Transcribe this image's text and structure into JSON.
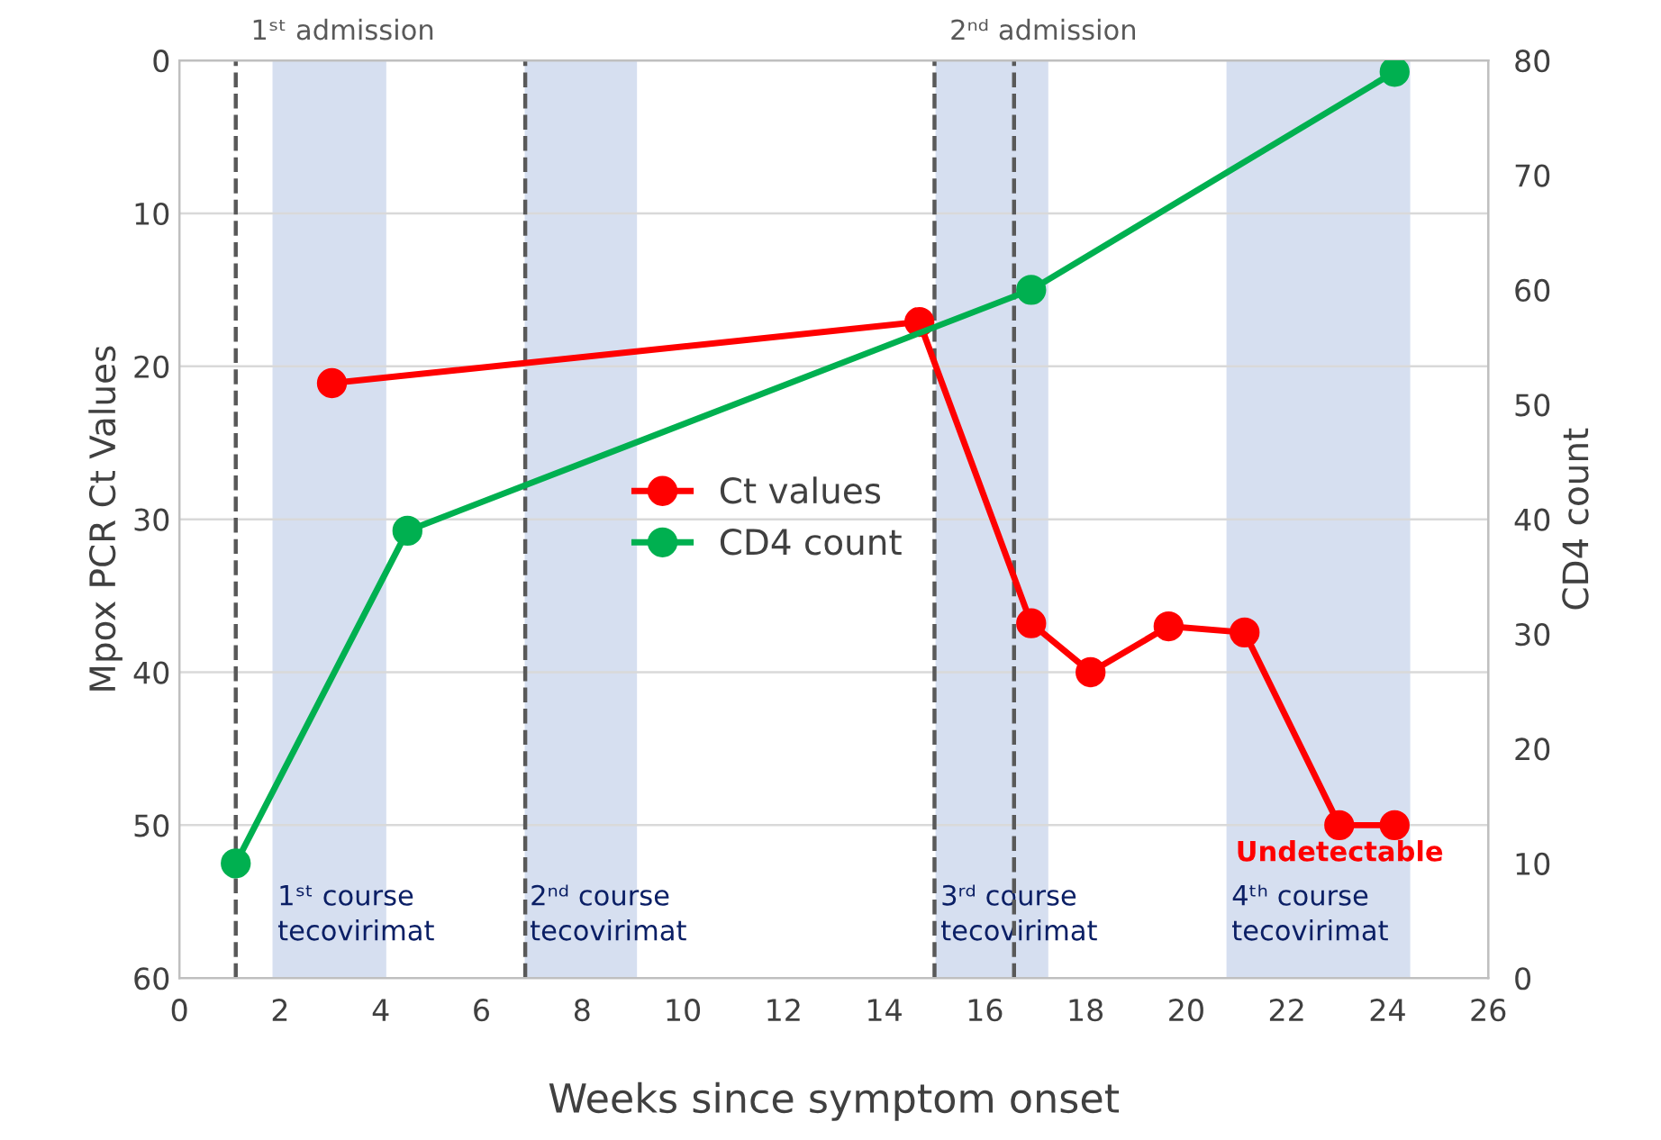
{
  "chart_data": {
    "type": "line",
    "xlabel": "Weeks since symptom onset",
    "ylabel": "Mpox PCR Ct Values",
    "y2label": "CD4 count",
    "series": [
      {
        "name": "Ct values",
        "color": "#ff0000",
        "x": [
          3.03,
          14.7,
          16.92,
          18.1,
          19.65,
          21.16,
          23.04,
          24.14
        ],
        "values": [
          21.1,
          17.1,
          36.8,
          40.0,
          37.0,
          37.4,
          50,
          50
        ]
      },
      {
        "name": "CD4 count",
        "color": "#00b050",
        "axis": "y2",
        "x": [
          1.12,
          4.53,
          16.92,
          24.14
        ],
        "values": [
          10,
          39,
          60,
          79
        ]
      }
    ],
    "xlim": [
      0,
      26
    ],
    "xticks": [
      0,
      2,
      4,
      6,
      8,
      10,
      12,
      14,
      16,
      18,
      20,
      22,
      24,
      26
    ],
    "ylim": [
      60,
      0
    ],
    "yticks": [
      0,
      10,
      20,
      30,
      40,
      50,
      60
    ],
    "y2lim": [
      0,
      80
    ],
    "y2ticks": [
      0,
      10,
      20,
      30,
      40,
      50,
      60,
      70,
      80
    ],
    "ref_lines": [
      {
        "axis": "x",
        "value": 1.12,
        "line_style": "dashed",
        "color": "#595959",
        "label": "1ˢᵗ admission"
      },
      {
        "axis": "x",
        "value": 6.87,
        "line_style": "dashed",
        "color": "#595959"
      },
      {
        "axis": "x",
        "value": 15.0,
        "line_style": "dashed",
        "color": "#595959",
        "label": "2ⁿᵈ admission"
      },
      {
        "axis": "x",
        "value": 16.58,
        "line_style": "dashed",
        "color": "#595959"
      }
    ],
    "bands": [
      {
        "axis": "x",
        "from": 1.85,
        "to": 4.11,
        "label": "1ˢᵗ course\ntecovirimat",
        "color": "#d6dff0"
      },
      {
        "axis": "x",
        "from": 6.86,
        "to": 9.09,
        "label": "2ⁿᵈ course\ntecovirimat",
        "color": "#d6dff0"
      },
      {
        "axis": "x",
        "from": 15.02,
        "to": 17.26,
        "label": "3ʳᵈ course\ntecovirimat",
        "color": "#d6dff0"
      },
      {
        "axis": "x",
        "from": 20.8,
        "to": 24.45,
        "label": "4ᵗʰ course\ntecovirimat",
        "color": "#d6dff0"
      }
    ],
    "annotations": [
      {
        "text": "Undetectable",
        "x": 24.14,
        "y": 50
      }
    ],
    "marker": "circle",
    "line_style": "solid",
    "grid": "y",
    "legend": "center"
  }
}
